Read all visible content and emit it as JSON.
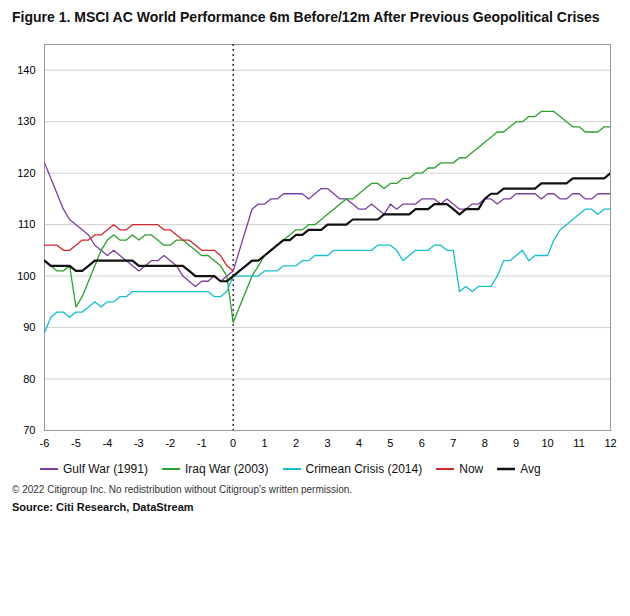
{
  "chart_data": {
    "type": "line",
    "title": "Figure 1. MSCI AC World Performance 6m Before/12m After Previous Geopolitical Crises",
    "annotations": [
      "© 2022 Citigroup Inc. No redistribution without Citigroup’s written permission.",
      "Source: Citi Research, DataStream"
    ],
    "x": [
      -6.0,
      -5.8,
      -5.6,
      -5.4,
      -5.2,
      -5.0,
      -4.8,
      -4.6,
      -4.4,
      -4.2,
      -4.0,
      -3.8,
      -3.6,
      -3.4,
      -3.2,
      -3.0,
      -2.8,
      -2.6,
      -2.4,
      -2.2,
      -2.0,
      -1.8,
      -1.6,
      -1.4,
      -1.2,
      -1.0,
      -0.8,
      -0.6,
      -0.4,
      -0.2,
      0.0,
      0.2,
      0.4,
      0.6,
      0.8,
      1.0,
      1.2,
      1.4,
      1.6,
      1.8,
      2.0,
      2.2,
      2.4,
      2.6,
      2.8,
      3.0,
      3.2,
      3.4,
      3.6,
      3.8,
      4.0,
      4.2,
      4.4,
      4.6,
      4.8,
      5.0,
      5.2,
      5.4,
      5.6,
      5.8,
      6.0,
      6.2,
      6.4,
      6.6,
      6.8,
      7.0,
      7.2,
      7.4,
      7.6,
      7.8,
      8.0,
      8.2,
      8.4,
      8.6,
      8.8,
      9.0,
      9.2,
      9.4,
      9.6,
      9.8,
      10.0,
      10.2,
      10.4,
      10.6,
      10.8,
      11.0,
      11.2,
      11.4,
      11.6,
      11.8,
      12.0
    ],
    "series": [
      {
        "name": "Gulf War (1991)",
        "color": "#7b3fa0",
        "values": [
          122,
          119,
          116,
          113,
          111,
          110,
          109,
          108,
          106,
          105,
          104,
          105,
          104,
          103,
          102,
          101,
          102,
          103,
          103,
          104,
          103,
          102,
          100,
          99,
          98,
          99,
          99,
          100,
          99,
          100,
          101,
          105,
          109,
          113,
          114,
          114,
          115,
          115,
          116,
          116,
          116,
          116,
          115,
          116,
          117,
          117,
          116,
          115,
          115,
          114,
          113,
          113,
          114,
          113,
          112,
          114,
          113,
          114,
          114,
          114,
          115,
          115,
          115,
          114,
          115,
          114,
          113,
          113,
          114,
          114,
          115,
          115,
          114,
          115,
          115,
          116,
          116,
          116,
          116,
          115,
          116,
          116,
          115,
          115,
          116,
          116,
          115,
          115,
          116,
          116,
          116
        ]
      },
      {
        "name": "Iraq War (2003)",
        "color": "#2ca02c",
        "values": [
          103,
          102,
          101,
          101,
          102,
          94,
          96,
          99,
          102,
          105,
          107,
          108,
          107,
          107,
          108,
          107,
          108,
          108,
          107,
          106,
          106,
          107,
          107,
          106,
          105,
          104,
          104,
          103,
          102,
          100,
          91,
          94,
          97,
          100,
          102,
          104,
          105,
          106,
          107,
          108,
          109,
          109,
          110,
          110,
          111,
          112,
          113,
          114,
          115,
          115,
          116,
          117,
          118,
          118,
          117,
          118,
          118,
          119,
          119,
          120,
          120,
          121,
          121,
          122,
          122,
          122,
          123,
          123,
          124,
          125,
          126,
          127,
          128,
          128,
          129,
          130,
          130,
          131,
          131,
          132,
          132,
          132,
          131,
          130,
          129,
          129,
          128,
          128,
          128,
          129,
          129
        ]
      },
      {
        "name": "Crimean Crisis (2014)",
        "color": "#17becf",
        "values": [
          89,
          92,
          93,
          93,
          92,
          93,
          93,
          94,
          95,
          94,
          95,
          95,
          96,
          96,
          97,
          97,
          97,
          97,
          97,
          97,
          97,
          97,
          97,
          97,
          97,
          97,
          97,
          96,
          96,
          97,
          100,
          100,
          100,
          100,
          100,
          101,
          101,
          101,
          102,
          102,
          102,
          103,
          103,
          104,
          104,
          104,
          105,
          105,
          105,
          105,
          105,
          105,
          105,
          106,
          106,
          106,
          105,
          103,
          104,
          105,
          105,
          105,
          106,
          106,
          105,
          105,
          97,
          98,
          97,
          98,
          98,
          98,
          100,
          103,
          103,
          104,
          105,
          103,
          104,
          104,
          104,
          107,
          109,
          110,
          111,
          112,
          113,
          113,
          112,
          113,
          113
        ]
      },
      {
        "name": "Now",
        "color": "#d62728",
        "values": [
          106,
          106,
          106,
          105,
          105,
          106,
          107,
          107,
          108,
          108,
          109,
          110,
          109,
          109,
          110,
          110,
          110,
          110,
          110,
          109,
          109,
          108,
          107,
          107,
          106,
          105,
          105,
          105,
          104,
          102,
          101,
          null,
          null,
          null,
          null,
          null,
          null,
          null,
          null,
          null,
          null,
          null,
          null,
          null,
          null,
          null,
          null,
          null,
          null,
          null,
          null,
          null,
          null,
          null,
          null,
          null,
          null,
          null,
          null,
          null,
          null,
          null,
          null,
          null,
          null,
          null,
          null,
          null,
          null,
          null,
          null,
          null,
          null,
          null,
          null,
          null,
          null,
          null,
          null,
          null,
          null,
          null,
          null,
          null,
          null,
          null,
          null,
          null,
          null,
          null,
          null
        ]
      },
      {
        "name": "Avg",
        "color": "#111111",
        "values": [
          103,
          102,
          102,
          102,
          102,
          101,
          101,
          102,
          103,
          103,
          103,
          103,
          103,
          103,
          103,
          102,
          102,
          102,
          102,
          102,
          102,
          102,
          102,
          101,
          100,
          100,
          100,
          100,
          99,
          99,
          100,
          101,
          102,
          103,
          103,
          104,
          105,
          106,
          107,
          107,
          108,
          108,
          109,
          109,
          109,
          110,
          110,
          110,
          110,
          111,
          111,
          111,
          111,
          111,
          112,
          112,
          112,
          112,
          112,
          113,
          113,
          113,
          114,
          114,
          114,
          113,
          112,
          113,
          113,
          113,
          115,
          116,
          116,
          117,
          117,
          117,
          117,
          117,
          117,
          118,
          118,
          118,
          118,
          118,
          119,
          119,
          119,
          119,
          119,
          119,
          120
        ]
      }
    ],
    "reference_x": 0,
    "xlim": [
      -6,
      12
    ],
    "xticks": [
      -6,
      -5,
      -4,
      -3,
      -2,
      -1,
      0,
      1,
      2,
      3,
      4,
      5,
      6,
      7,
      8,
      9,
      10,
      11,
      12
    ],
    "ylim": [
      70,
      145
    ],
    "yticks": [
      70,
      80,
      90,
      100,
      110,
      120,
      130,
      140
    ],
    "grid": true,
    "legend": "bottom"
  }
}
